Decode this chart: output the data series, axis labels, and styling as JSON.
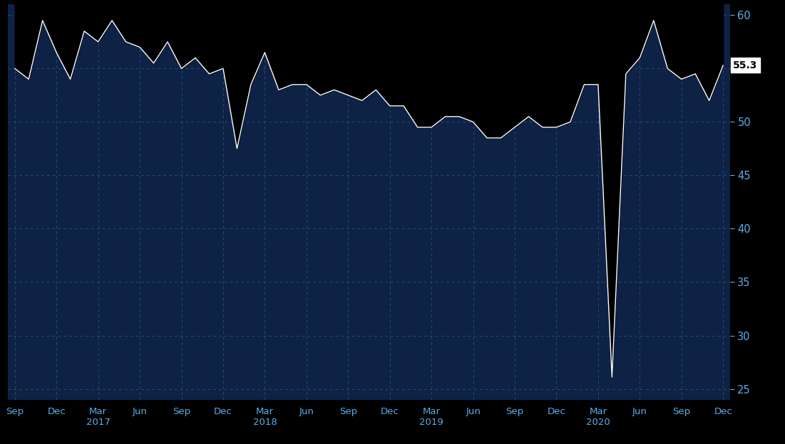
{
  "fig_bg_color": "#000000",
  "plot_bg_color": "#0d2245",
  "line_color": "#ffffff",
  "grid_color": "#2a4a7f",
  "label_color": "#5baee8",
  "yticks": [
    25,
    30,
    35,
    40,
    45,
    50,
    55,
    60
  ],
  "ylim": [
    24,
    61
  ],
  "last_value": 55.3,
  "xtick_positions": [
    0,
    3,
    6,
    9,
    12,
    15,
    18,
    21,
    24,
    27,
    30,
    33,
    36,
    39,
    42,
    45,
    48,
    51
  ],
  "xtick_labels": [
    "Sep",
    "Dec",
    "Mar\n2017",
    "Jun",
    "Sep",
    "Dec",
    "Mar\n2018",
    "Jun",
    "Sep",
    "Dec",
    "Mar\n2019",
    "Jun",
    "Sep",
    "Dec",
    "Mar\n2020",
    "Jun",
    "Sep",
    "Dec"
  ],
  "values": [
    55.0,
    54.0,
    59.5,
    56.5,
    54.0,
    58.5,
    57.5,
    59.5,
    57.5,
    57.0,
    55.5,
    57.5,
    55.0,
    56.0,
    54.5,
    55.0,
    47.5,
    53.5,
    56.5,
    53.0,
    53.5,
    53.5,
    52.5,
    53.0,
    52.5,
    52.0,
    53.0,
    51.5,
    51.5,
    49.5,
    49.5,
    50.5,
    50.5,
    50.0,
    48.5,
    48.5,
    49.5,
    50.5,
    49.5,
    49.5,
    50.0,
    53.5,
    53.5,
    26.1,
    54.5,
    56.0,
    59.5,
    55.0,
    54.0,
    54.5,
    52.0,
    55.3
  ]
}
